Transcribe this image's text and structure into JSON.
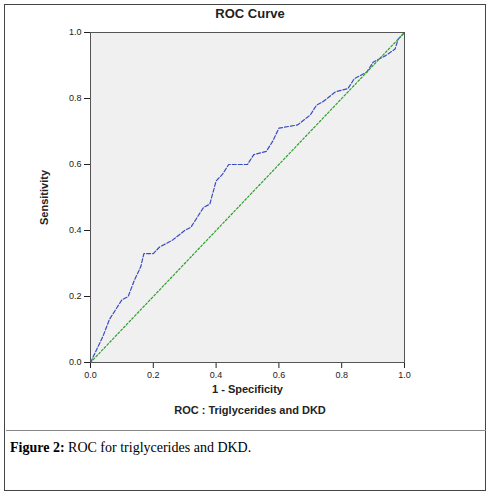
{
  "chart_data": {
    "type": "line",
    "title": "ROC Curve",
    "subtitle": "ROC : Triglycerides and DKD",
    "caption": "Figure 2: ROC for triglycerides and DKD.",
    "x_label": "1 - Specificity",
    "y_label": "Sensitivity",
    "xlim": [
      0,
      1
    ],
    "ylim": [
      0,
      1
    ],
    "xticks": [
      {
        "value": 0,
        "label": "0.0"
      },
      {
        "value": 0.2,
        "label": "0.2"
      },
      {
        "value": 0.4,
        "label": "0.4"
      },
      {
        "value": 0.6,
        "label": "0.6"
      },
      {
        "value": 0.8,
        "label": "0.8"
      },
      {
        "value": 1,
        "label": "1.0"
      }
    ],
    "yticks": [
      {
        "value": 0,
        "label": "0.0"
      },
      {
        "value": 0.2,
        "label": "0.2"
      },
      {
        "value": 0.4,
        "label": "0.4"
      },
      {
        "value": 0.6,
        "label": "0.6"
      },
      {
        "value": 0.8,
        "label": "0.8"
      },
      {
        "value": 1,
        "label": "1.0"
      }
    ],
    "grid": false,
    "series": [
      {
        "color": "#3b4cc0",
        "line_style": "dashed",
        "x": [
          0,
          0.02,
          0.04,
          0.06,
          0.08,
          0.1,
          0.12,
          0.14,
          0.16,
          0.17,
          0.2,
          0.22,
          0.26,
          0.3,
          0.32,
          0.34,
          0.36,
          0.38,
          0.4,
          0.42,
          0.44,
          0.5,
          0.52,
          0.56,
          0.58,
          0.6,
          0.66,
          0.7,
          0.72,
          0.74,
          0.78,
          0.82,
          0.84,
          0.88,
          0.9,
          0.94,
          0.97,
          0.98,
          1
        ],
        "values": [
          0,
          0.04,
          0.08,
          0.13,
          0.16,
          0.19,
          0.2,
          0.25,
          0.29,
          0.33,
          0.33,
          0.35,
          0.37,
          0.4,
          0.41,
          0.44,
          0.47,
          0.48,
          0.55,
          0.57,
          0.6,
          0.6,
          0.63,
          0.64,
          0.67,
          0.71,
          0.72,
          0.75,
          0.78,
          0.79,
          0.82,
          0.83,
          0.86,
          0.88,
          0.91,
          0.93,
          0.95,
          0.98,
          1
        ]
      },
      {
        "color": "#2ca02c",
        "line_style": "dotted",
        "x": [
          0,
          1
        ],
        "values": [
          0,
          1
        ]
      }
    ]
  }
}
